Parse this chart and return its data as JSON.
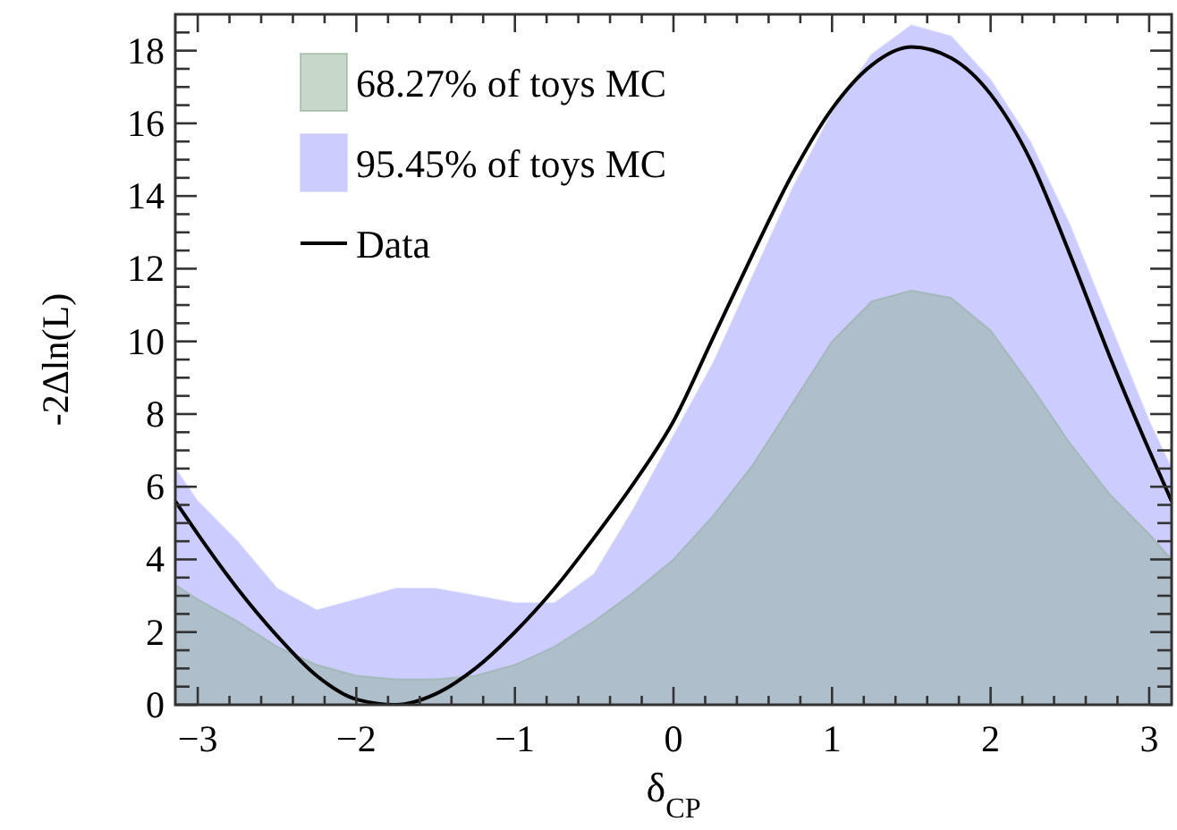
{
  "chart_data": {
    "type": "area",
    "xlabel": "δ$_{CP}$",
    "ylabel": "-2Δln(L)",
    "x": [
      -3.1416,
      -3.0,
      -2.75,
      -2.5,
      -2.25,
      -2.0,
      -1.75,
      -1.5,
      -1.25,
      -1.0,
      -0.75,
      -0.5,
      -0.25,
      0,
      0.25,
      0.5,
      0.75,
      1.0,
      1.25,
      1.5,
      1.75,
      2.0,
      2.25,
      2.5,
      2.75,
      3.0,
      3.1416
    ],
    "series": [
      {
        "name": "95.45% of toys MC",
        "color": "#ccccff",
        "values": [
          6.5,
          5.6,
          4.5,
          3.2,
          2.6,
          2.9,
          3.2,
          3.2,
          3.0,
          2.8,
          2.8,
          3.6,
          5.4,
          7.4,
          9.4,
          11.8,
          14.2,
          16.3,
          17.9,
          18.7,
          18.4,
          17.2,
          15.5,
          13.2,
          10.5,
          7.8,
          6.5
        ]
      },
      {
        "name": "68.27% of toys MC",
        "color": "#8fb096",
        "values": [
          3.3,
          2.9,
          2.3,
          1.6,
          1.1,
          0.8,
          0.7,
          0.7,
          0.8,
          1.1,
          1.6,
          2.3,
          3.1,
          4.0,
          5.2,
          6.6,
          8.3,
          10.0,
          11.1,
          11.4,
          11.2,
          10.3,
          8.8,
          7.2,
          5.8,
          4.7,
          4.0
        ]
      },
      {
        "name": "Data",
        "type": "line",
        "color": "#000000",
        "values": [
          5.6,
          4.7,
          3.2,
          1.9,
          0.8,
          0.15,
          0.0,
          0.3,
          1.0,
          2.0,
          3.2,
          4.6,
          6.1,
          7.8,
          10.1,
          12.4,
          14.6,
          16.4,
          17.6,
          18.1,
          17.8,
          16.8,
          15.0,
          12.4,
          9.6,
          7.0,
          5.6
        ]
      }
    ],
    "xlim": [
      -3.1416,
      3.1416
    ],
    "xticks": [
      -3,
      {
        "value": -2.8,
        "label": null
      },
      {
        "value": -2.6,
        "label": null
      },
      {
        "value": -2.4,
        "label": null
      },
      {
        "value": -2.2,
        "label": null
      },
      -2,
      {
        "value": -1.8,
        "label": null
      },
      {
        "value": -1.6,
        "label": null
      },
      {
        "value": -1.4,
        "label": null
      },
      {
        "value": -1.2,
        "label": null
      },
      -1,
      {
        "value": -0.8,
        "label": null
      },
      {
        "value": -0.6,
        "label": null
      },
      {
        "value": -0.4,
        "label": null
      },
      {
        "value": -0.2,
        "label": null
      },
      0,
      {
        "value": 0.2,
        "label": null
      },
      {
        "value": 0.4,
        "label": null
      },
      {
        "value": 0.6,
        "label": null
      },
      {
        "value": 0.8,
        "label": null
      },
      1,
      {
        "value": 1.2,
        "label": null
      },
      {
        "value": 1.4,
        "label": null
      },
      {
        "value": 1.6,
        "label": null
      },
      {
        "value": 1.8,
        "label": null
      },
      2,
      {
        "value": 2.2,
        "label": null
      },
      {
        "value": 2.4,
        "label": null
      },
      {
        "value": 2.6,
        "label": null
      },
      {
        "value": 2.8,
        "label": null
      },
      3
    ],
    "ylim": [
      0,
      19
    ],
    "yticks": [
      0,
      {
        "value": 0.5,
        "label": null
      },
      {
        "value": 1,
        "label": null
      },
      {
        "value": 1.5,
        "label": null
      },
      2,
      {
        "value": 2.5,
        "label": null
      },
      {
        "value": 3,
        "label": null
      },
      {
        "value": 3.5,
        "label": null
      },
      4,
      {
        "value": 4.5,
        "label": null
      },
      {
        "value": 5,
        "label": null
      },
      {
        "value": 5.5,
        "label": null
      },
      6,
      {
        "value": 6.5,
        "label": null
      },
      {
        "value": 7,
        "label": null
      },
      {
        "value": 7.5,
        "label": null
      },
      8,
      {
        "value": 8.5,
        "label": null
      },
      {
        "value": 9,
        "label": null
      },
      {
        "value": 9.5,
        "label": null
      },
      10,
      {
        "value": 10.5,
        "label": null
      },
      {
        "value": 11,
        "label": null
      },
      {
        "value": 11.5,
        "label": null
      },
      12,
      {
        "value": 12.5,
        "label": null
      },
      {
        "value": 13,
        "label": null
      },
      {
        "value": 13.5,
        "label": null
      },
      14,
      {
        "value": 14.5,
        "label": null
      },
      {
        "value": 15,
        "label": null
      },
      {
        "value": 15.5,
        "label": null
      },
      16,
      {
        "value": 16.5,
        "label": null
      },
      {
        "value": 17,
        "label": null
      },
      {
        "value": 17.5,
        "label": null
      },
      18,
      {
        "value": 18.5,
        "label": null
      }
    ],
    "legend": "top left",
    "grid": false
  }
}
